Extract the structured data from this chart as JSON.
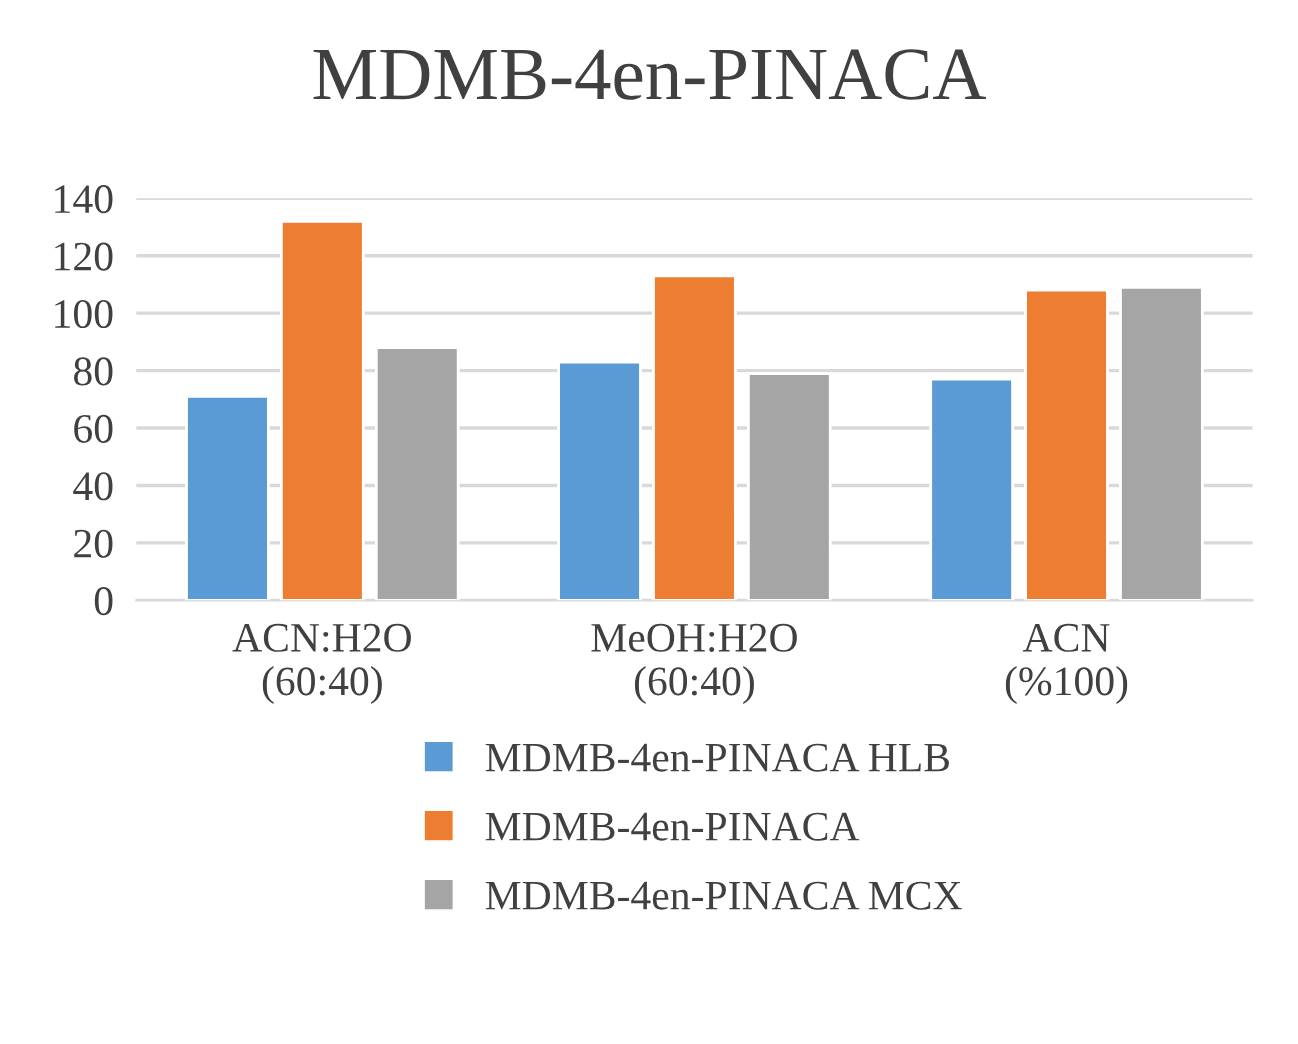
{
  "chart_data": {
    "type": "bar",
    "title": "MDMB-4en-PINACA",
    "categories": [
      "ACN:H2O\n(60:40)",
      "MeOH:H2O\n(60:40)",
      "ACN\n(%100)"
    ],
    "series": [
      {
        "name": "MDMB-4en-PINACA HLB",
        "color": "#5b9bd5",
        "values": [
          71,
          83,
          77
        ]
      },
      {
        "name": "MDMB-4en-PINACA",
        "color": "#ed7d31",
        "values": [
          132,
          113,
          108
        ]
      },
      {
        "name": "MDMB-4en-PINACA MCX",
        "color": "#a5a5a5",
        "values": [
          88,
          79,
          109
        ]
      }
    ],
    "ylim": [
      0,
      140
    ],
    "yticks": [
      0,
      20,
      40,
      60,
      80,
      100,
      120,
      140
    ],
    "grid": "y",
    "legend": "bottom"
  }
}
